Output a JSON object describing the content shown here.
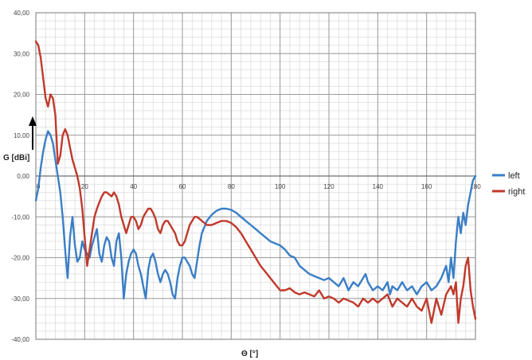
{
  "chart_data": {
    "type": "line",
    "title": "",
    "xlabel": "Θ [°]",
    "ylabel": "G [dBi]",
    "xlim": [
      0,
      180
    ],
    "ylim": [
      -40,
      40
    ],
    "x_ticks": [
      "0",
      "20",
      "40",
      "60",
      "80",
      "100",
      "120",
      "140",
      "160",
      "180"
    ],
    "y_ticks": [
      "40,00",
      "30,00",
      "20,00",
      "10,00",
      "0,00",
      "-10,00",
      "-20,00",
      "-30,00",
      "-40,00"
    ],
    "grid": true,
    "legend_position": "right",
    "series": [
      {
        "name": "left",
        "color": "#3a7ec6",
        "points": [
          [
            0,
            -6
          ],
          [
            1,
            -3
          ],
          [
            2,
            2
          ],
          [
            3,
            6
          ],
          [
            4,
            9
          ],
          [
            5,
            11
          ],
          [
            6,
            10
          ],
          [
            7,
            8
          ],
          [
            8,
            4
          ],
          [
            9,
            0
          ],
          [
            10,
            -4
          ],
          [
            11,
            -10
          ],
          [
            12,
            -18
          ],
          [
            13,
            -25
          ],
          [
            14,
            -15
          ],
          [
            15,
            -10
          ],
          [
            16,
            -17
          ],
          [
            17,
            -21
          ],
          [
            18,
            -20
          ],
          [
            19,
            -16
          ],
          [
            20,
            -18
          ],
          [
            21,
            -19
          ],
          [
            22,
            -20
          ],
          [
            23,
            -17
          ],
          [
            24,
            -15
          ],
          [
            25,
            -13
          ],
          [
            26,
            -19
          ],
          [
            27,
            -21
          ],
          [
            28,
            -17
          ],
          [
            29,
            -15
          ],
          [
            30,
            -16
          ],
          [
            31,
            -20
          ],
          [
            32,
            -22
          ],
          [
            33,
            -16
          ],
          [
            34,
            -14
          ],
          [
            35,
            -20
          ],
          [
            36,
            -30
          ],
          [
            37,
            -24
          ],
          [
            38,
            -21
          ],
          [
            39,
            -19
          ],
          [
            40,
            -18
          ],
          [
            41,
            -19
          ],
          [
            42,
            -22
          ],
          [
            43,
            -24
          ],
          [
            44,
            -27
          ],
          [
            45,
            -30
          ],
          [
            46,
            -23
          ],
          [
            47,
            -20
          ],
          [
            48,
            -19
          ],
          [
            49,
            -21
          ],
          [
            50,
            -24
          ],
          [
            51,
            -26
          ],
          [
            52,
            -24
          ],
          [
            53,
            -23
          ],
          [
            54,
            -24
          ],
          [
            55,
            -26
          ],
          [
            56,
            -29
          ],
          [
            57,
            -30
          ],
          [
            58,
            -25
          ],
          [
            59,
            -22
          ],
          [
            60,
            -20
          ],
          [
            61,
            -20
          ],
          [
            62,
            -21
          ],
          [
            63,
            -22
          ],
          [
            64,
            -24
          ],
          [
            65,
            -25
          ],
          [
            66,
            -21
          ],
          [
            67,
            -17
          ],
          [
            68,
            -14
          ],
          [
            70,
            -11
          ],
          [
            72,
            -9.5
          ],
          [
            74,
            -8.5
          ],
          [
            76,
            -8
          ],
          [
            78,
            -8
          ],
          [
            80,
            -8.3
          ],
          [
            82,
            -9
          ],
          [
            84,
            -10
          ],
          [
            86,
            -11
          ],
          [
            88,
            -12
          ],
          [
            90,
            -13
          ],
          [
            92,
            -14
          ],
          [
            94,
            -15
          ],
          [
            96,
            -16
          ],
          [
            98,
            -16.5
          ],
          [
            100,
            -17
          ],
          [
            102,
            -18
          ],
          [
            104,
            -19.5
          ],
          [
            106,
            -20
          ],
          [
            108,
            -22
          ],
          [
            110,
            -23
          ],
          [
            112,
            -24
          ],
          [
            114,
            -24.5
          ],
          [
            116,
            -25
          ],
          [
            118,
            -25.5
          ],
          [
            120,
            -25
          ],
          [
            122,
            -26
          ],
          [
            124,
            -27
          ],
          [
            126,
            -25
          ],
          [
            128,
            -28
          ],
          [
            130,
            -26
          ],
          [
            132,
            -27
          ],
          [
            134,
            -25
          ],
          [
            135,
            -24
          ],
          [
            136,
            -26
          ],
          [
            138,
            -28
          ],
          [
            140,
            -27
          ],
          [
            142,
            -28
          ],
          [
            144,
            -26
          ],
          [
            145,
            -29
          ],
          [
            146,
            -27
          ],
          [
            148,
            -28
          ],
          [
            150,
            -26
          ],
          [
            152,
            -28
          ],
          [
            154,
            -27
          ],
          [
            156,
            -29
          ],
          [
            158,
            -27
          ],
          [
            160,
            -26
          ],
          [
            162,
            -28
          ],
          [
            164,
            -27
          ],
          [
            166,
            -25
          ],
          [
            168,
            -22
          ],
          [
            169,
            -26
          ],
          [
            170,
            -20
          ],
          [
            171,
            -25
          ],
          [
            172,
            -16
          ],
          [
            173,
            -10
          ],
          [
            174,
            -14
          ],
          [
            175,
            -9
          ],
          [
            176,
            -12
          ],
          [
            177,
            -7
          ],
          [
            178,
            -4
          ],
          [
            179,
            -1
          ],
          [
            180,
            0
          ]
        ]
      },
      {
        "name": "right",
        "color": "#c0392b",
        "points": [
          [
            0,
            33
          ],
          [
            1,
            32
          ],
          [
            2,
            29
          ],
          [
            3,
            24
          ],
          [
            4,
            19
          ],
          [
            5,
            17
          ],
          [
            6,
            20
          ],
          [
            7,
            19
          ],
          [
            8,
            15
          ],
          [
            9,
            3
          ],
          [
            10,
            5
          ],
          [
            11,
            10
          ],
          [
            12,
            11.5
          ],
          [
            13,
            10
          ],
          [
            14,
            7
          ],
          [
            15,
            4
          ],
          [
            16,
            2
          ],
          [
            17,
            0
          ],
          [
            18,
            -3
          ],
          [
            19,
            -8
          ],
          [
            20,
            -15
          ],
          [
            21,
            -22
          ],
          [
            22,
            -18
          ],
          [
            23,
            -14
          ],
          [
            24,
            -10
          ],
          [
            25,
            -8
          ],
          [
            26,
            -6.5
          ],
          [
            27,
            -5
          ],
          [
            28,
            -4
          ],
          [
            29,
            -4
          ],
          [
            30,
            -4.5
          ],
          [
            31,
            -5
          ],
          [
            32,
            -4
          ],
          [
            33,
            -5
          ],
          [
            34,
            -7
          ],
          [
            35,
            -10
          ],
          [
            36,
            -12
          ],
          [
            37,
            -14
          ],
          [
            38,
            -12
          ],
          [
            39,
            -10
          ],
          [
            40,
            -10
          ],
          [
            41,
            -11
          ],
          [
            42,
            -13
          ],
          [
            43,
            -12
          ],
          [
            44,
            -10
          ],
          [
            45,
            -9
          ],
          [
            46,
            -8
          ],
          [
            47,
            -8
          ],
          [
            48,
            -9
          ],
          [
            49,
            -10.5
          ],
          [
            50,
            -13
          ],
          [
            51,
            -14
          ],
          [
            52,
            -12
          ],
          [
            53,
            -11
          ],
          [
            54,
            -11
          ],
          [
            55,
            -12
          ],
          [
            56,
            -13
          ],
          [
            57,
            -14
          ],
          [
            58,
            -16
          ],
          [
            59,
            -17
          ],
          [
            60,
            -17
          ],
          [
            61,
            -16
          ],
          [
            62,
            -14
          ],
          [
            63,
            -12
          ],
          [
            64,
            -11
          ],
          [
            65,
            -10
          ],
          [
            66,
            -10
          ],
          [
            67,
            -10.5
          ],
          [
            68,
            -11
          ],
          [
            70,
            -12
          ],
          [
            72,
            -12
          ],
          [
            74,
            -11.5
          ],
          [
            76,
            -11
          ],
          [
            78,
            -11
          ],
          [
            80,
            -11.5
          ],
          [
            82,
            -12.5
          ],
          [
            84,
            -14
          ],
          [
            86,
            -16
          ],
          [
            88,
            -18
          ],
          [
            90,
            -20
          ],
          [
            92,
            -22
          ],
          [
            94,
            -23.5
          ],
          [
            96,
            -25
          ],
          [
            98,
            -26.5
          ],
          [
            100,
            -28
          ],
          [
            102,
            -28
          ],
          [
            104,
            -27.5
          ],
          [
            106,
            -28.5
          ],
          [
            108,
            -29
          ],
          [
            110,
            -28.5
          ],
          [
            112,
            -29
          ],
          [
            114,
            -29.5
          ],
          [
            116,
            -28
          ],
          [
            118,
            -30
          ],
          [
            120,
            -29.5
          ],
          [
            122,
            -30
          ],
          [
            124,
            -31
          ],
          [
            126,
            -30
          ],
          [
            128,
            -30.5
          ],
          [
            130,
            -31
          ],
          [
            132,
            -32
          ],
          [
            134,
            -30
          ],
          [
            136,
            -31
          ],
          [
            138,
            -30
          ],
          [
            140,
            -31
          ],
          [
            142,
            -30
          ],
          [
            144,
            -29
          ],
          [
            146,
            -32
          ],
          [
            148,
            -30
          ],
          [
            150,
            -31
          ],
          [
            152,
            -32
          ],
          [
            154,
            -30
          ],
          [
            156,
            -32
          ],
          [
            158,
            -33
          ],
          [
            160,
            -30
          ],
          [
            162,
            -36
          ],
          [
            164,
            -30
          ],
          [
            166,
            -34
          ],
          [
            168,
            -29
          ],
          [
            170,
            -27
          ],
          [
            171,
            -29
          ],
          [
            172,
            -26
          ],
          [
            173,
            -36
          ],
          [
            174,
            -30
          ],
          [
            175,
            -27
          ],
          [
            176,
            -22
          ],
          [
            177,
            -20
          ],
          [
            178,
            -28
          ],
          [
            179,
            -32
          ],
          [
            180,
            -35
          ]
        ]
      }
    ]
  }
}
